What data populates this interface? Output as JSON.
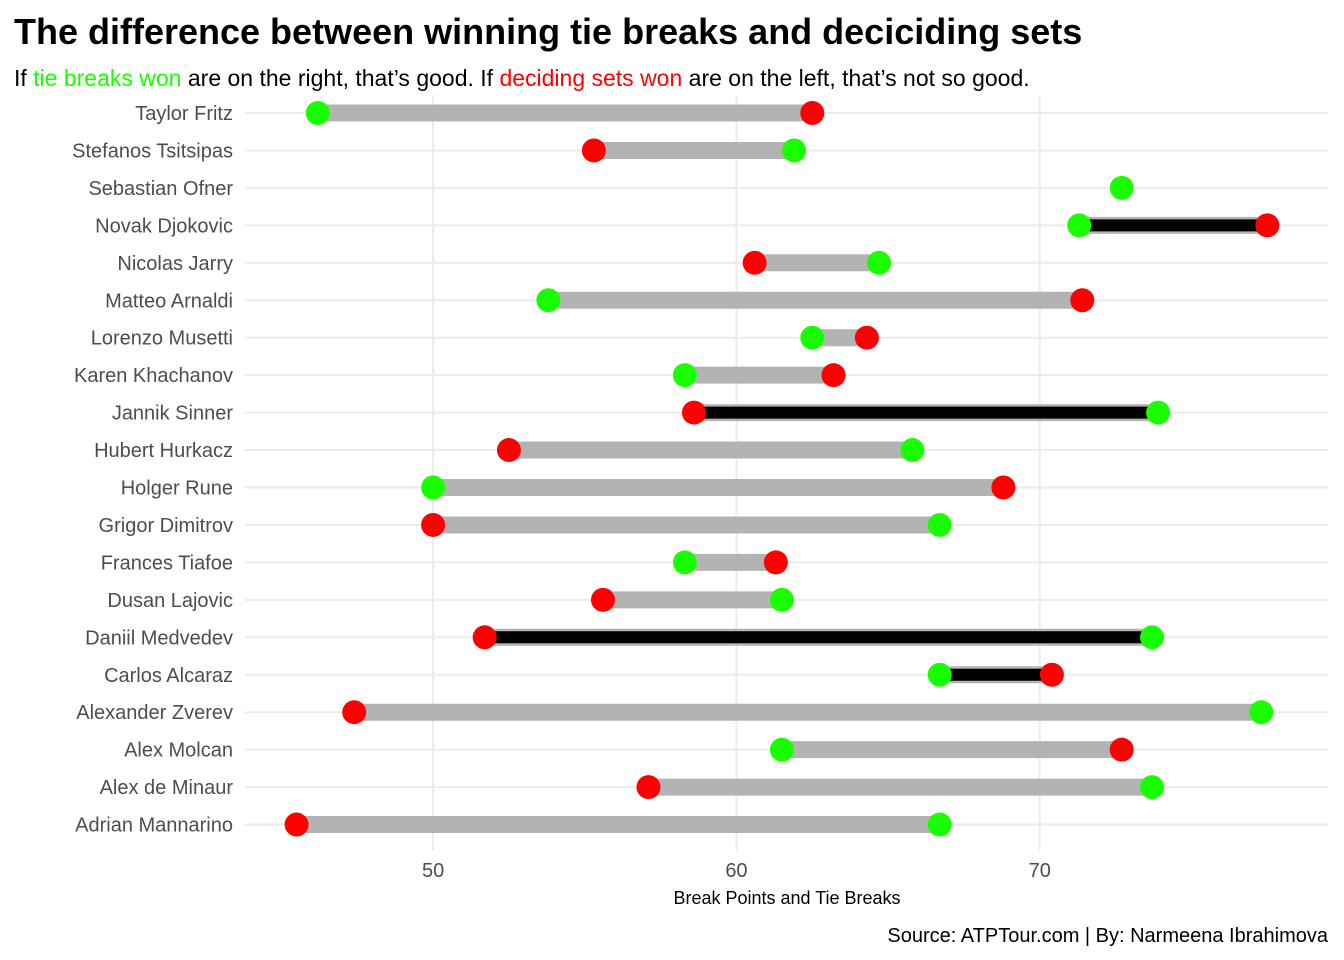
{
  "chart_data": {
    "type": "dumbbell",
    "title": "The difference between winning tie breaks and deciciding sets",
    "subtitle": {
      "prefix": "If ",
      "tb_label": "tie breaks won",
      "middle": " are on the right, that’s good. If ",
      "ds_label": "deciding sets won",
      "suffix": " are on the left, that’s not so good."
    },
    "xlabel": "Break Points and Tie Breaks",
    "caption": "Source: ATPTour.com | By: Narmeena Ibrahimova",
    "xlim": [
      43.8,
      79.5
    ],
    "xticks": [
      50,
      60,
      70
    ],
    "grid": true,
    "colors": {
      "tie_breaks": "#1aff00",
      "deciding_sets": "#ff0000",
      "gap_bar": "#b3b3b3",
      "highlight_bar": "#000000"
    },
    "players": [
      {
        "name": "Taylor Fritz",
        "tie_breaks": 46.2,
        "deciding_sets": 62.5,
        "highlight": false
      },
      {
        "name": "Stefanos Tsitsipas",
        "tie_breaks": 61.9,
        "deciding_sets": 55.3,
        "highlight": false
      },
      {
        "name": "Sebastian Ofner",
        "tie_breaks": 72.7,
        "deciding_sets": null,
        "highlight": false
      },
      {
        "name": "Novak Djokovic",
        "tie_breaks": 71.3,
        "deciding_sets": 77.5,
        "highlight": true
      },
      {
        "name": "Nicolas Jarry",
        "tie_breaks": 64.7,
        "deciding_sets": 60.6,
        "highlight": false
      },
      {
        "name": "Matteo Arnaldi",
        "tie_breaks": 53.8,
        "deciding_sets": 71.4,
        "highlight": false
      },
      {
        "name": "Lorenzo Musetti",
        "tie_breaks": 62.5,
        "deciding_sets": 64.3,
        "highlight": false
      },
      {
        "name": "Karen Khachanov",
        "tie_breaks": 58.3,
        "deciding_sets": 63.2,
        "highlight": false
      },
      {
        "name": "Jannik Sinner",
        "tie_breaks": 73.9,
        "deciding_sets": 58.6,
        "highlight": true
      },
      {
        "name": "Hubert Hurkacz",
        "tie_breaks": 65.8,
        "deciding_sets": 52.5,
        "highlight": false
      },
      {
        "name": "Holger Rune",
        "tie_breaks": 50.0,
        "deciding_sets": 68.8,
        "highlight": false
      },
      {
        "name": "Grigor Dimitrov",
        "tie_breaks": 66.7,
        "deciding_sets": 50.0,
        "highlight": false
      },
      {
        "name": "Frances Tiafoe",
        "tie_breaks": 58.3,
        "deciding_sets": 61.3,
        "highlight": false
      },
      {
        "name": "Dusan Lajovic",
        "tie_breaks": 61.5,
        "deciding_sets": 55.6,
        "highlight": false
      },
      {
        "name": "Daniil Medvedev",
        "tie_breaks": 73.7,
        "deciding_sets": 51.7,
        "highlight": true
      },
      {
        "name": "Carlos Alcaraz",
        "tie_breaks": 66.7,
        "deciding_sets": 70.4,
        "highlight": true
      },
      {
        "name": "Alexander Zverev",
        "tie_breaks": 77.3,
        "deciding_sets": 47.4,
        "highlight": false
      },
      {
        "name": "Alex Molcan",
        "tie_breaks": 61.5,
        "deciding_sets": 72.7,
        "highlight": false
      },
      {
        "name": "Alex de Minaur",
        "tie_breaks": 73.7,
        "deciding_sets": 57.1,
        "highlight": false
      },
      {
        "name": "Adrian Mannarino",
        "tie_breaks": 66.7,
        "deciding_sets": 45.5,
        "highlight": false
      }
    ]
  }
}
